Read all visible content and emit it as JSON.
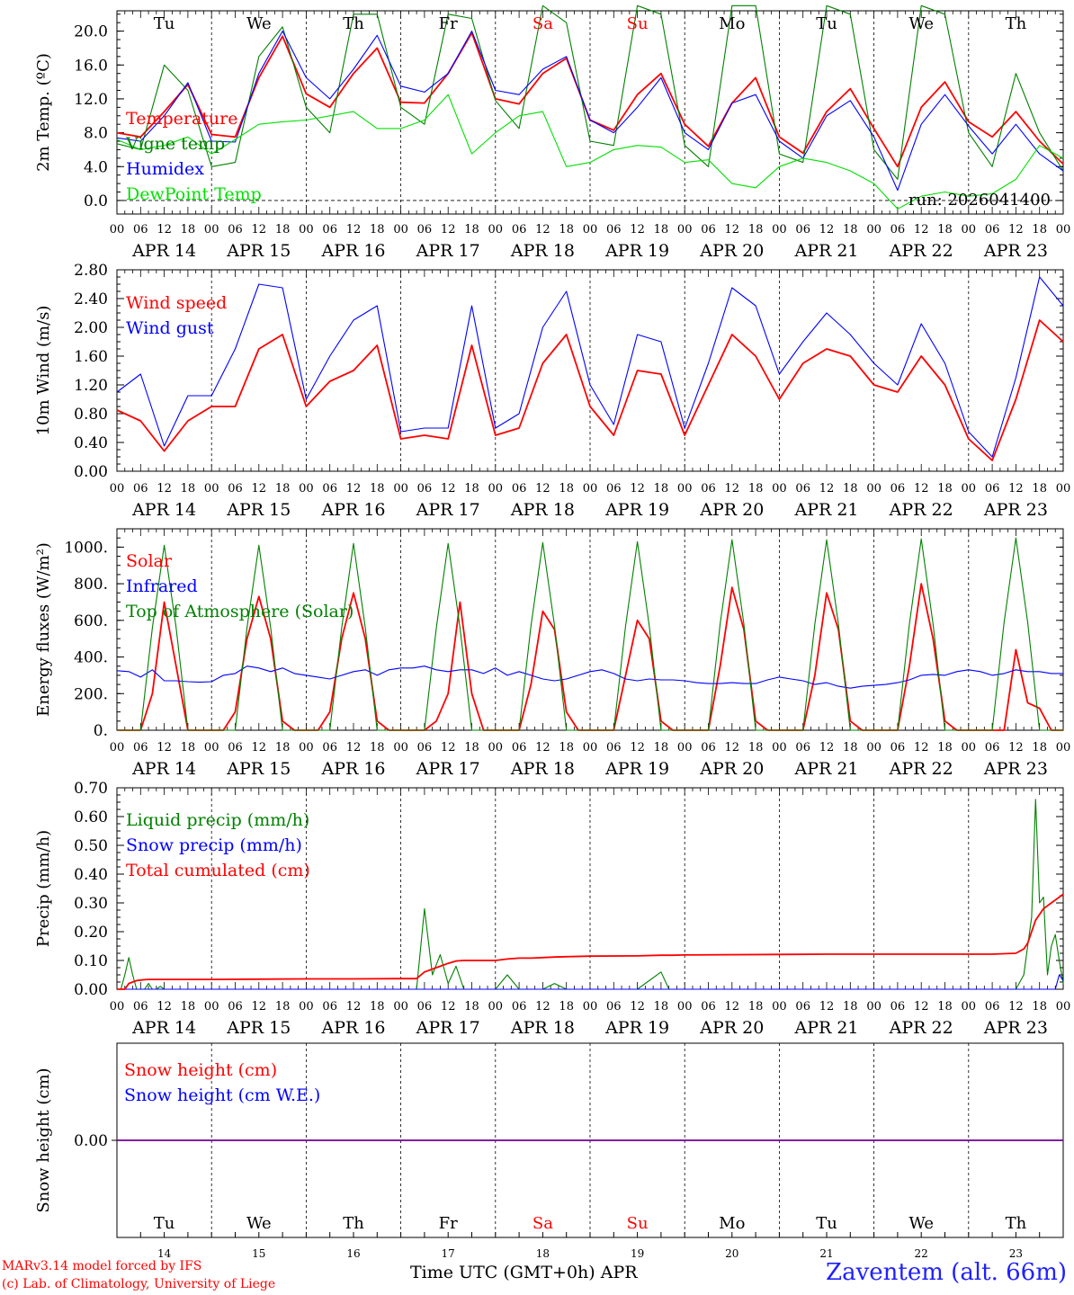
{
  "run_label": "run: 2026041400",
  "station": "Zaventem (alt. 66m)",
  "credits": [
    "MARv3.14 model forced by IFS",
    "(c) Lab. of Climatology, University of Liege"
  ],
  "x_axis_title": "Time UTC (GMT+0h) APR",
  "days": [
    "APR 14",
    "APR 15",
    "APR 16",
    "APR 17",
    "APR 18",
    "APR 19",
    "APR 20",
    "APR 21",
    "APR 22",
    "APR 23"
  ],
  "day_nums": [
    "14",
    "15",
    "16",
    "17",
    "18",
    "19",
    "20",
    "21",
    "22",
    "23"
  ],
  "weekdays": [
    "Tu",
    "We",
    "Th",
    "Fr",
    "Sa",
    "Su",
    "Mo",
    "Tu",
    "We",
    "Th"
  ],
  "weekend_color": "#ff0000",
  "hour_ticks": [
    "00",
    "06",
    "12",
    "18"
  ],
  "hour_tick_end": "00",
  "colors": {
    "red": "#ff0000",
    "green": "#008000",
    "blue": "#0000ff",
    "lightgreen": "#00e000"
  },
  "chart_data": [
    {
      "type": "line",
      "ylabel": "2m Temp. (ºC)",
      "ylim": [
        -1.6,
        22.4
      ],
      "yticks": [
        "0.0",
        "4.0",
        "8.0",
        "12.0",
        "16.0",
        "20.0"
      ],
      "legend": [
        "Temperature",
        "Vigne temp",
        "Humidex",
        "DewPoint Temp"
      ],
      "zero_line": true,
      "x_hours": [
        0,
        6,
        12,
        18,
        24,
        30,
        36,
        42,
        48,
        54,
        60,
        66,
        72,
        78,
        84,
        90,
        96,
        102,
        108,
        114,
        120,
        126,
        132,
        138,
        144,
        150,
        156,
        162,
        168,
        174,
        180,
        186,
        192,
        198,
        204,
        210,
        216,
        222,
        228,
        234,
        240
      ],
      "series": [
        {
          "name": "Temperature",
          "color": "red",
          "values": [
            8.0,
            7.5,
            10.5,
            13.7,
            7.8,
            7.5,
            14.5,
            19.4,
            12.6,
            11.0,
            15.0,
            18.0,
            11.6,
            11.5,
            15.0,
            19.8,
            12.0,
            11.4,
            15.0,
            16.8,
            9.5,
            8.3,
            12.5,
            15.0,
            9.0,
            6.4,
            11.5,
            14.5,
            7.5,
            5.6,
            10.5,
            13.2,
            8.5,
            4.0,
            11.0,
            14.0,
            9.3,
            7.5,
            10.5,
            7.0,
            4.3
          ]
        },
        {
          "name": "Vigne temp",
          "color": "green",
          "values": [
            6.7,
            6.0,
            16.0,
            13.0,
            4.0,
            4.5,
            17.0,
            20.5,
            11.0,
            8.0,
            22.0,
            22.0,
            11.0,
            9.0,
            22.0,
            21.5,
            11.8,
            8.5,
            23.0,
            21.0,
            7.0,
            6.5,
            23.0,
            22.0,
            6.5,
            4.0,
            23.0,
            23.0,
            5.5,
            4.5,
            23.0,
            22.0,
            6.0,
            2.5,
            23.0,
            22.0,
            8.0,
            4.0,
            15.0,
            8.0,
            3.5
          ]
        },
        {
          "name": "Humidex",
          "color": "blue",
          "values": [
            7.4,
            7.0,
            10.0,
            13.9,
            7.0,
            6.9,
            15.0,
            20.0,
            14.5,
            12.0,
            15.5,
            19.5,
            13.5,
            12.8,
            15.0,
            20.0,
            13.0,
            12.5,
            15.5,
            17.0,
            9.5,
            8.0,
            11.0,
            14.5,
            8.0,
            6.0,
            11.5,
            12.5,
            7.0,
            5.0,
            10.0,
            11.8,
            7.5,
            1.2,
            9.0,
            12.5,
            8.8,
            5.5,
            9.0,
            5.5,
            3.5
          ]
        },
        {
          "name": "DewPoint Temp",
          "color": "lightgreen",
          "values": [
            7.2,
            6.0,
            6.5,
            7.5,
            5.5,
            7.2,
            9.0,
            9.3,
            9.5,
            10.0,
            10.5,
            8.5,
            8.5,
            9.5,
            12.5,
            5.5,
            8.0,
            10.0,
            10.5,
            4.0,
            4.5,
            6.0,
            6.5,
            6.3,
            4.5,
            4.8,
            2.0,
            1.5,
            4.0,
            5.0,
            4.5,
            3.5,
            2.0,
            -1.0,
            0.5,
            1.0,
            0.5,
            0.8,
            2.5,
            6.5,
            5.0
          ]
        }
      ]
    },
    {
      "type": "line",
      "ylabel": "10m Wind (m/s)",
      "ylim": [
        0,
        2.8
      ],
      "yticks": [
        "0.00",
        "0.40",
        "0.80",
        "1.20",
        "1.60",
        "2.00",
        "2.40",
        "2.80"
      ],
      "legend": [
        "Wind speed",
        "Wind gust"
      ],
      "x_hours": [
        0,
        6,
        12,
        18,
        24,
        30,
        36,
        42,
        48,
        54,
        60,
        66,
        72,
        78,
        84,
        90,
        96,
        102,
        108,
        114,
        120,
        126,
        132,
        138,
        144,
        150,
        156,
        162,
        168,
        174,
        180,
        186,
        192,
        198,
        204,
        210,
        216,
        222,
        228,
        234,
        240
      ],
      "series": [
        {
          "name": "Wind speed",
          "color": "red",
          "values": [
            0.85,
            0.7,
            0.28,
            0.7,
            0.9,
            0.9,
            1.7,
            1.9,
            0.9,
            1.25,
            1.4,
            1.75,
            0.45,
            0.5,
            0.45,
            1.75,
            0.5,
            0.6,
            1.5,
            1.9,
            0.9,
            0.5,
            1.4,
            1.35,
            0.5,
            1.2,
            1.9,
            1.6,
            1.0,
            1.5,
            1.7,
            1.6,
            1.2,
            1.1,
            1.6,
            1.2,
            0.45,
            0.15,
            1.0,
            2.1,
            1.8
          ]
        },
        {
          "name": "Wind gust",
          "color": "blue",
          "values": [
            1.1,
            1.35,
            0.35,
            1.05,
            1.05,
            1.7,
            2.6,
            2.55,
            1.0,
            1.6,
            2.1,
            2.3,
            0.55,
            0.6,
            0.6,
            2.3,
            0.6,
            0.8,
            2.0,
            2.5,
            1.2,
            0.65,
            1.9,
            1.8,
            0.6,
            1.5,
            2.55,
            2.3,
            1.35,
            1.8,
            2.2,
            1.9,
            1.5,
            1.2,
            2.05,
            1.5,
            0.55,
            0.2,
            1.3,
            2.7,
            2.3
          ]
        }
      ]
    },
    {
      "type": "line",
      "ylabel": "Energy fluxes (W/m²)",
      "ylim": [
        0,
        1100
      ],
      "yticks": [
        "0.",
        "200.",
        "400.",
        "600.",
        "800.",
        "1000."
      ],
      "legend": [
        "Solar",
        "Infrared",
        "Top of Atmosphere (Solar)"
      ],
      "x_hours": [
        0,
        3,
        6,
        9,
        12,
        15,
        18,
        21,
        24,
        27,
        30,
        33,
        36,
        39,
        42,
        45,
        48,
        51,
        54,
        57,
        60,
        63,
        66,
        69,
        72,
        75,
        78,
        81,
        84,
        87,
        90,
        93,
        96,
        99,
        102,
        105,
        108,
        111,
        114,
        117,
        120,
        123,
        126,
        129,
        132,
        135,
        138,
        141,
        144,
        147,
        150,
        153,
        156,
        159,
        162,
        165,
        168,
        171,
        174,
        177,
        180,
        183,
        186,
        189,
        192,
        195,
        198,
        201,
        204,
        207,
        210,
        213,
        216,
        219,
        222,
        225,
        228,
        231,
        234,
        237,
        240
      ],
      "series": [
        {
          "name": "Solar",
          "color": "red",
          "values": [
            0,
            0,
            0,
            200,
            700,
            350,
            0,
            0,
            0,
            0,
            100,
            500,
            730,
            500,
            50,
            0,
            0,
            0,
            100,
            500,
            750,
            500,
            50,
            0,
            0,
            0,
            0,
            50,
            200,
            700,
            200,
            0,
            0,
            0,
            0,
            250,
            650,
            550,
            100,
            0,
            0,
            0,
            0,
            300,
            600,
            500,
            50,
            0,
            0,
            0,
            0,
            350,
            780,
            550,
            50,
            0,
            0,
            0,
            0,
            300,
            750,
            550,
            50,
            0,
            0,
            0,
            0,
            350,
            800,
            500,
            50,
            0,
            0,
            0,
            0,
            0,
            440,
            150,
            120,
            0,
            0
          ]
        },
        {
          "name": "Infrared",
          "color": "blue",
          "values": [
            325,
            320,
            290,
            330,
            270,
            270,
            265,
            262,
            265,
            300,
            310,
            350,
            340,
            320,
            340,
            310,
            300,
            290,
            280,
            300,
            320,
            330,
            300,
            330,
            340,
            340,
            350,
            330,
            320,
            330,
            330,
            310,
            340,
            300,
            320,
            300,
            280,
            270,
            280,
            300,
            320,
            330,
            310,
            280,
            270,
            280,
            275,
            275,
            270,
            260,
            255,
            255,
            260,
            255,
            255,
            275,
            290,
            280,
            270,
            250,
            260,
            240,
            230,
            240,
            245,
            250,
            260,
            275,
            300,
            305,
            300,
            320,
            330,
            320,
            300,
            310,
            330,
            320,
            320,
            310,
            310
          ]
        },
        {
          "name": "Top of Atmosphere (Solar)",
          "color": "green",
          "values": [
            0,
            0,
            0,
            560,
            1010,
            560,
            0,
            0,
            0,
            0,
            0,
            560,
            1010,
            560,
            0,
            0,
            0,
            0,
            0,
            560,
            1020,
            560,
            0,
            0,
            0,
            0,
            0,
            560,
            1020,
            560,
            0,
            0,
            0,
            0,
            0,
            570,
            1025,
            570,
            0,
            0,
            0,
            0,
            0,
            570,
            1030,
            570,
            0,
            0,
            0,
            0,
            0,
            580,
            1040,
            580,
            0,
            0,
            0,
            0,
            0,
            580,
            1040,
            580,
            0,
            0,
            0,
            0,
            0,
            580,
            1045,
            580,
            0,
            0,
            0,
            0,
            0,
            590,
            1050,
            590,
            0,
            0,
            0
          ]
        }
      ]
    },
    {
      "type": "line",
      "ylabel": "Precip (mm/h)",
      "ylim": [
        0,
        0.7
      ],
      "yticks": [
        "0.00",
        "0.10",
        "0.20",
        "0.30",
        "0.40",
        "0.50",
        "0.60",
        "0.70"
      ],
      "legend": [
        "Liquid precip (mm/h)",
        "Snow precip (mm/h)",
        "Total cumulated (cm)"
      ],
      "x_hours": [
        0,
        1,
        2,
        3,
        4,
        5,
        6,
        7,
        8,
        9,
        10,
        11,
        12,
        18,
        24,
        36,
        48,
        60,
        72,
        76,
        78,
        80,
        82,
        84,
        86,
        88,
        90,
        93,
        96,
        99,
        102,
        105,
        108,
        111,
        114,
        120,
        132,
        138,
        140,
        141,
        144,
        168,
        180,
        192,
        210,
        222,
        228,
        230,
        231,
        232,
        233,
        234,
        235,
        236,
        237,
        238,
        239,
        240
      ],
      "series": [
        {
          "name": "Liquid precip (mm/h)",
          "color": "green",
          "values": [
            0,
            0,
            0.05,
            0.11,
            0.05,
            0,
            0,
            0,
            0.02,
            0,
            0,
            0.01,
            0,
            0,
            0,
            0,
            0,
            0,
            0,
            0,
            0.28,
            0.05,
            0.12,
            0.02,
            0.08,
            0,
            0,
            0,
            0,
            0.05,
            0,
            0,
            0,
            0.02,
            0,
            0,
            0,
            0.06,
            0,
            0,
            0,
            0,
            0,
            0,
            0,
            0,
            0,
            0.05,
            0.15,
            0.25,
            0.66,
            0.3,
            0.32,
            0.05,
            0.15,
            0.19,
            0.1,
            0.02
          ]
        },
        {
          "name": "Snow precip (mm/h)",
          "color": "blue",
          "values": [
            0,
            0,
            0,
            0,
            0,
            0,
            0,
            0,
            0,
            0,
            0,
            0,
            0,
            0,
            0,
            0,
            0,
            0,
            0,
            0,
            0,
            0,
            0,
            0,
            0,
            0,
            0,
            0,
            0,
            0,
            0,
            0,
            0,
            0,
            0,
            0,
            0,
            0,
            0,
            0,
            0,
            0,
            0,
            0,
            0,
            0,
            0,
            0,
            0,
            0,
            0,
            0,
            0,
            0,
            0,
            0,
            0.05,
            0.03
          ]
        },
        {
          "name": "Total cumulated (cm)",
          "color": "red",
          "values": [
            0,
            0,
            0,
            0.02,
            0.025,
            0.03,
            0.032,
            0.033,
            0.034,
            0.034,
            0.034,
            0.034,
            0.034,
            0.034,
            0.034,
            0.035,
            0.036,
            0.036,
            0.037,
            0.037,
            0.06,
            0.07,
            0.08,
            0.09,
            0.098,
            0.1,
            0.1,
            0.1,
            0.1,
            0.105,
            0.108,
            0.108,
            0.11,
            0.112,
            0.113,
            0.115,
            0.116,
            0.118,
            0.118,
            0.118,
            0.119,
            0.121,
            0.122,
            0.122,
            0.122,
            0.122,
            0.125,
            0.14,
            0.16,
            0.2,
            0.24,
            0.26,
            0.28,
            0.29,
            0.3,
            0.31,
            0.32,
            0.33
          ]
        }
      ]
    },
    {
      "type": "line",
      "ylabel": "Snow height (cm)",
      "ylim": [
        -1,
        1
      ],
      "yticks": [
        "0.00"
      ],
      "legend": [
        "Snow height (cm)",
        "Snow height (cm W.E.)"
      ],
      "x_hours": [
        0,
        240
      ],
      "series": [
        {
          "name": "Snow height (cm)",
          "color": "red",
          "values": [
            0,
            0
          ]
        },
        {
          "name": "Snow height (cm W.E.)",
          "color": "blue",
          "values": [
            0,
            0
          ]
        }
      ]
    }
  ]
}
